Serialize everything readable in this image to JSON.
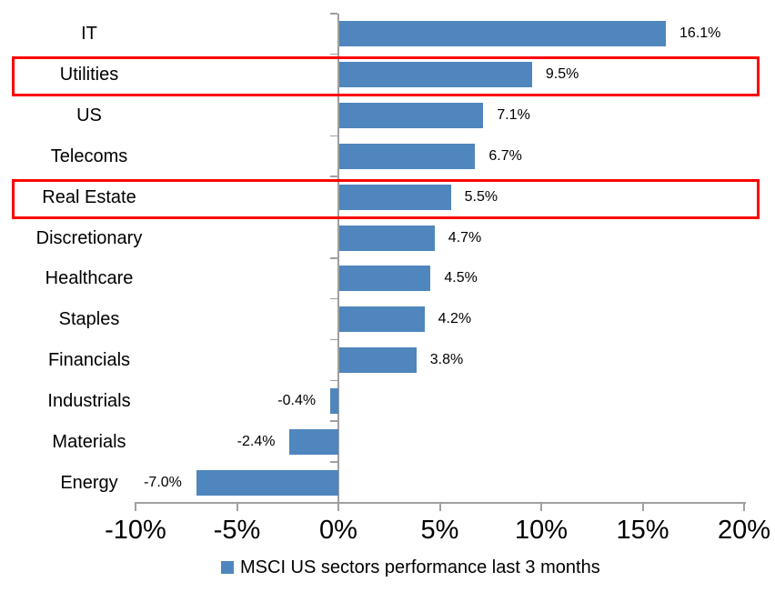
{
  "chart_data": {
    "type": "bar",
    "orientation": "horizontal",
    "categories": [
      "IT",
      "Utilities",
      "US",
      "Telecoms",
      "Real Estate",
      "Discretionary",
      "Healthcare",
      "Staples",
      "Financials",
      "Industrials",
      "Materials",
      "Energy"
    ],
    "values": [
      16.1,
      9.5,
      7.1,
      6.7,
      5.5,
      4.7,
      4.5,
      4.2,
      3.8,
      -0.4,
      -2.4,
      -7.0
    ],
    "labels": [
      "16.1%",
      "9.5%",
      "7.1%",
      "6.7%",
      "5.5%",
      "4.7%",
      "4.5%",
      "4.2%",
      "3.8%",
      "-0.4%",
      "-2.4%",
      "-7.0%"
    ],
    "highlighted_categories": [
      "Utilities",
      "Real Estate"
    ],
    "x_tick_values": [
      -10,
      -5,
      0,
      5,
      10,
      15,
      20
    ],
    "x_tick_labels": [
      "-10%",
      "-5%",
      "0%",
      "5%",
      "10%",
      "15%",
      "20%"
    ],
    "xlim": [
      -10,
      20
    ],
    "grid": false,
    "legend_position": "bottom-center",
    "legend": [
      {
        "label": "MSCI US sectors performance last 3 months",
        "color": "#4F86BD"
      }
    ],
    "colors": {
      "bar": "#4F86BD",
      "highlight_box": "#FF0000",
      "axis": "#A0A0A0",
      "text": "#000000"
    }
  }
}
